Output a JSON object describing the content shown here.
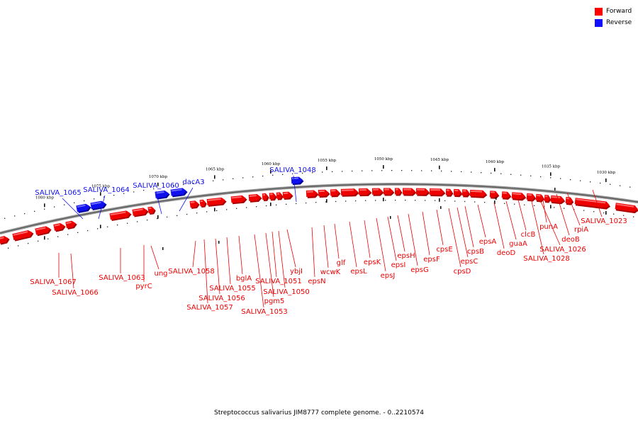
{
  "legend": {
    "forward": {
      "label": "Forward",
      "color": "#ff0000"
    },
    "reverse": {
      "label": "Reverse",
      "color": "#1010ff"
    }
  },
  "caption": "Streptococcus salivarius JIM8777 complete genome. - 0..2210574",
  "colors": {
    "forward": "#ee0000",
    "forward_dark": "#aa0000",
    "reverse": "#1010ee",
    "reverse_dark": "#0000a0",
    "backbone": "#777777"
  },
  "scale_labels": [
    "1080 kbp",
    "1075 kbp",
    "1070 kbp",
    "1065 kbp",
    "1060 kbp",
    "1055 kbp",
    "1050 kbp",
    "1045 kbp",
    "1040 kbp",
    "1035 kbp",
    "1030 kbp"
  ],
  "genes": [
    {
      "name": "SALIVA_1065",
      "strand": "reverse"
    },
    {
      "name": "SALIVA_1064",
      "strand": "reverse"
    },
    {
      "name": "SALIVA_1060",
      "strand": "reverse"
    },
    {
      "name": "dacA3",
      "strand": "reverse"
    },
    {
      "name": "SALIVA_1048",
      "strand": "reverse"
    },
    {
      "name": "SALIVA_1067",
      "strand": "forward"
    },
    {
      "name": "SALIVA_1066",
      "strand": "forward"
    },
    {
      "name": "SALIVA_1063",
      "strand": "forward"
    },
    {
      "name": "pyrC",
      "strand": "forward"
    },
    {
      "name": "ung",
      "strand": "forward"
    },
    {
      "name": "SALIVA_1058",
      "strand": "forward"
    },
    {
      "name": "SALIVA_1057",
      "strand": "forward"
    },
    {
      "name": "SALIVA_1056",
      "strand": "forward"
    },
    {
      "name": "SALIVA_1055",
      "strand": "forward"
    },
    {
      "name": "bglA",
      "strand": "forward"
    },
    {
      "name": "SALIVA_1053",
      "strand": "forward"
    },
    {
      "name": "pgm5",
      "strand": "forward"
    },
    {
      "name": "SALIVA_1051",
      "strand": "forward"
    },
    {
      "name": "SALIVA_1050",
      "strand": "forward"
    },
    {
      "name": "ybjI",
      "strand": "forward"
    },
    {
      "name": "epsN",
      "strand": "forward"
    },
    {
      "name": "wcwK",
      "strand": "forward"
    },
    {
      "name": "glf",
      "strand": "forward"
    },
    {
      "name": "epsL",
      "strand": "forward"
    },
    {
      "name": "epsK",
      "strand": "forward"
    },
    {
      "name": "epsJ",
      "strand": "forward"
    },
    {
      "name": "epsI",
      "strand": "forward"
    },
    {
      "name": "epsH",
      "strand": "forward"
    },
    {
      "name": "epsG",
      "strand": "forward"
    },
    {
      "name": "epsF",
      "strand": "forward"
    },
    {
      "name": "cpsE",
      "strand": "forward"
    },
    {
      "name": "cpsD",
      "strand": "forward"
    },
    {
      "name": "epsC",
      "strand": "forward"
    },
    {
      "name": "cpsB",
      "strand": "forward"
    },
    {
      "name": "epsA",
      "strand": "forward"
    },
    {
      "name": "deoD",
      "strand": "forward"
    },
    {
      "name": "guaA",
      "strand": "forward"
    },
    {
      "name": "clcB",
      "strand": "forward"
    },
    {
      "name": "SALIVA_1028",
      "strand": "forward"
    },
    {
      "name": "SALIVA_1026",
      "strand": "forward"
    },
    {
      "name": "punA",
      "strand": "forward"
    },
    {
      "name": "deoB",
      "strand": "forward"
    },
    {
      "name": "rpiA",
      "strand": "forward"
    },
    {
      "name": "SALIVA_1023",
      "strand": "forward"
    }
  ]
}
